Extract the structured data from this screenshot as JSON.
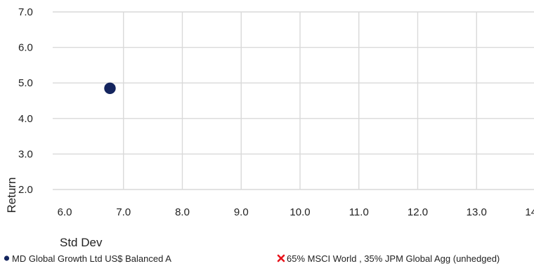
{
  "chart_data": {
    "type": "scatter",
    "xlabel": "Std Dev",
    "ylabel": "Return",
    "xlim": [
      6.0,
      14.0
    ],
    "ylim": [
      2.0,
      7.0
    ],
    "x_ticks": [
      "6.0",
      "7.0",
      "8.0",
      "9.0",
      "10.0",
      "11.0",
      "12.0",
      "13.0",
      "14.0"
    ],
    "y_ticks": [
      "7.0",
      "6.0",
      "5.0",
      "4.0",
      "3.0",
      "2.0"
    ],
    "grid": true,
    "legend_position": "bottom",
    "series": [
      {
        "name": "MD Global Growth Ltd US$ Balanced A",
        "marker": "circle",
        "color": "#14255e",
        "points": [
          {
            "x": 6.77,
            "y": 4.85
          }
        ]
      },
      {
        "name": "65% MSCI World , 35% JPM Global Agg (unhedged)",
        "marker": "cross",
        "color": "#e8141c",
        "points": []
      }
    ]
  }
}
